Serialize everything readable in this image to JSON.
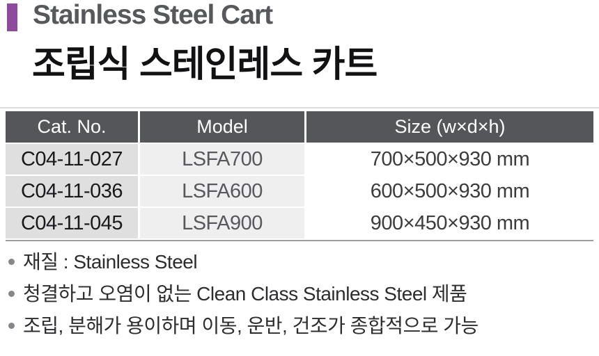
{
  "header": {
    "subtitle_en": "Stainless Steel Cart",
    "title_ko": "조립식 스테인레스 카트"
  },
  "colors": {
    "accent": "#8e4a9d",
    "table_header_bg": "#545659",
    "cat_col_bg": "#dfdfe0",
    "model_col_bg": "#efeff0",
    "size_col_bg": "#ffffff",
    "table_bottom_border": "#9b9c9e",
    "bullet_dot": "#85878a"
  },
  "table": {
    "columns": [
      "Cat. No.",
      "Model",
      "Size (w×d×h)"
    ],
    "rows": [
      {
        "cat_no": "C04-11-027",
        "model": "LSFA700",
        "size": "700×500×930 mm"
      },
      {
        "cat_no": "C04-11-036",
        "model": "LSFA600",
        "size": "600×500×930 mm"
      },
      {
        "cat_no": "C04-11-045",
        "model": "LSFA900",
        "size": "900×450×930 mm"
      }
    ]
  },
  "bullets": [
    "재질 : Stainless Steel",
    "청결하고 오염이 없는 Clean Class Stainless Steel 제품",
    "조립, 분해가 용이하며 이동, 운반, 건조가 종합적으로 가능"
  ]
}
